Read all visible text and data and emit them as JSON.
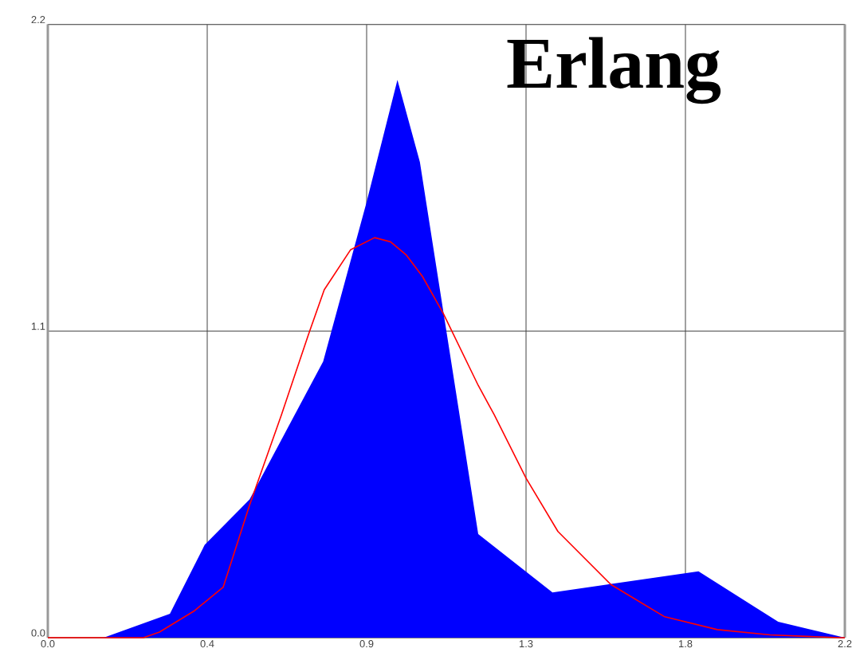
{
  "chart_data": {
    "type": "area",
    "title": "Erlang",
    "series": [
      {
        "color": "#0000ff",
        "x": [
          0,
          0.154,
          0.337,
          0.433,
          0.557,
          0.76,
          0.88,
          0.965,
          1.027,
          1.188,
          1.393,
          1.796,
          2.016,
          2.2
        ],
        "values": [
          0,
          0,
          0.086,
          0.333,
          0.496,
          0.991,
          1.563,
          2.001,
          1.706,
          0.372,
          0.162,
          0.238,
          0.057,
          0
        ]
      },
      {
        "type": "line",
        "color": "#ff0000",
        "x": [
          0,
          0.264,
          0.308,
          0.403,
          0.484,
          0.557,
          0.645,
          0.719,
          0.763,
          0.836,
          0.902,
          0.946,
          0.99,
          1.034,
          1.092,
          1.188,
          1.232,
          1.32,
          1.408,
          1.554,
          1.701,
          1.848,
          1.994,
          2.185,
          2.2
        ],
        "values": [
          0,
          0,
          0.02,
          0.095,
          0.181,
          0.476,
          0.8,
          1.086,
          1.248,
          1.392,
          1.435,
          1.42,
          1.372,
          1.296,
          1.162,
          0.905,
          0.8,
          0.572,
          0.381,
          0.191,
          0.076,
          0.029,
          0.01,
          0,
          0
        ]
      }
    ],
    "xlim": [
      0,
      2.2
    ],
    "ylim": [
      0,
      2.2
    ],
    "xticks": [
      {
        "value": 0,
        "label": "0.0"
      },
      {
        "value": 0.44,
        "label": "0.4"
      },
      {
        "value": 0.88,
        "label": "0.9"
      },
      {
        "value": 1.32,
        "label": "1.3"
      },
      {
        "value": 1.76,
        "label": "1.8"
      },
      {
        "value": 2.2,
        "label": "2.2"
      }
    ],
    "yticks": [
      {
        "value": 0,
        "label": "0.0"
      },
      {
        "value": 1.1,
        "label": "1.1"
      },
      {
        "value": 2.2,
        "label": "2.2"
      }
    ],
    "grid": true
  }
}
